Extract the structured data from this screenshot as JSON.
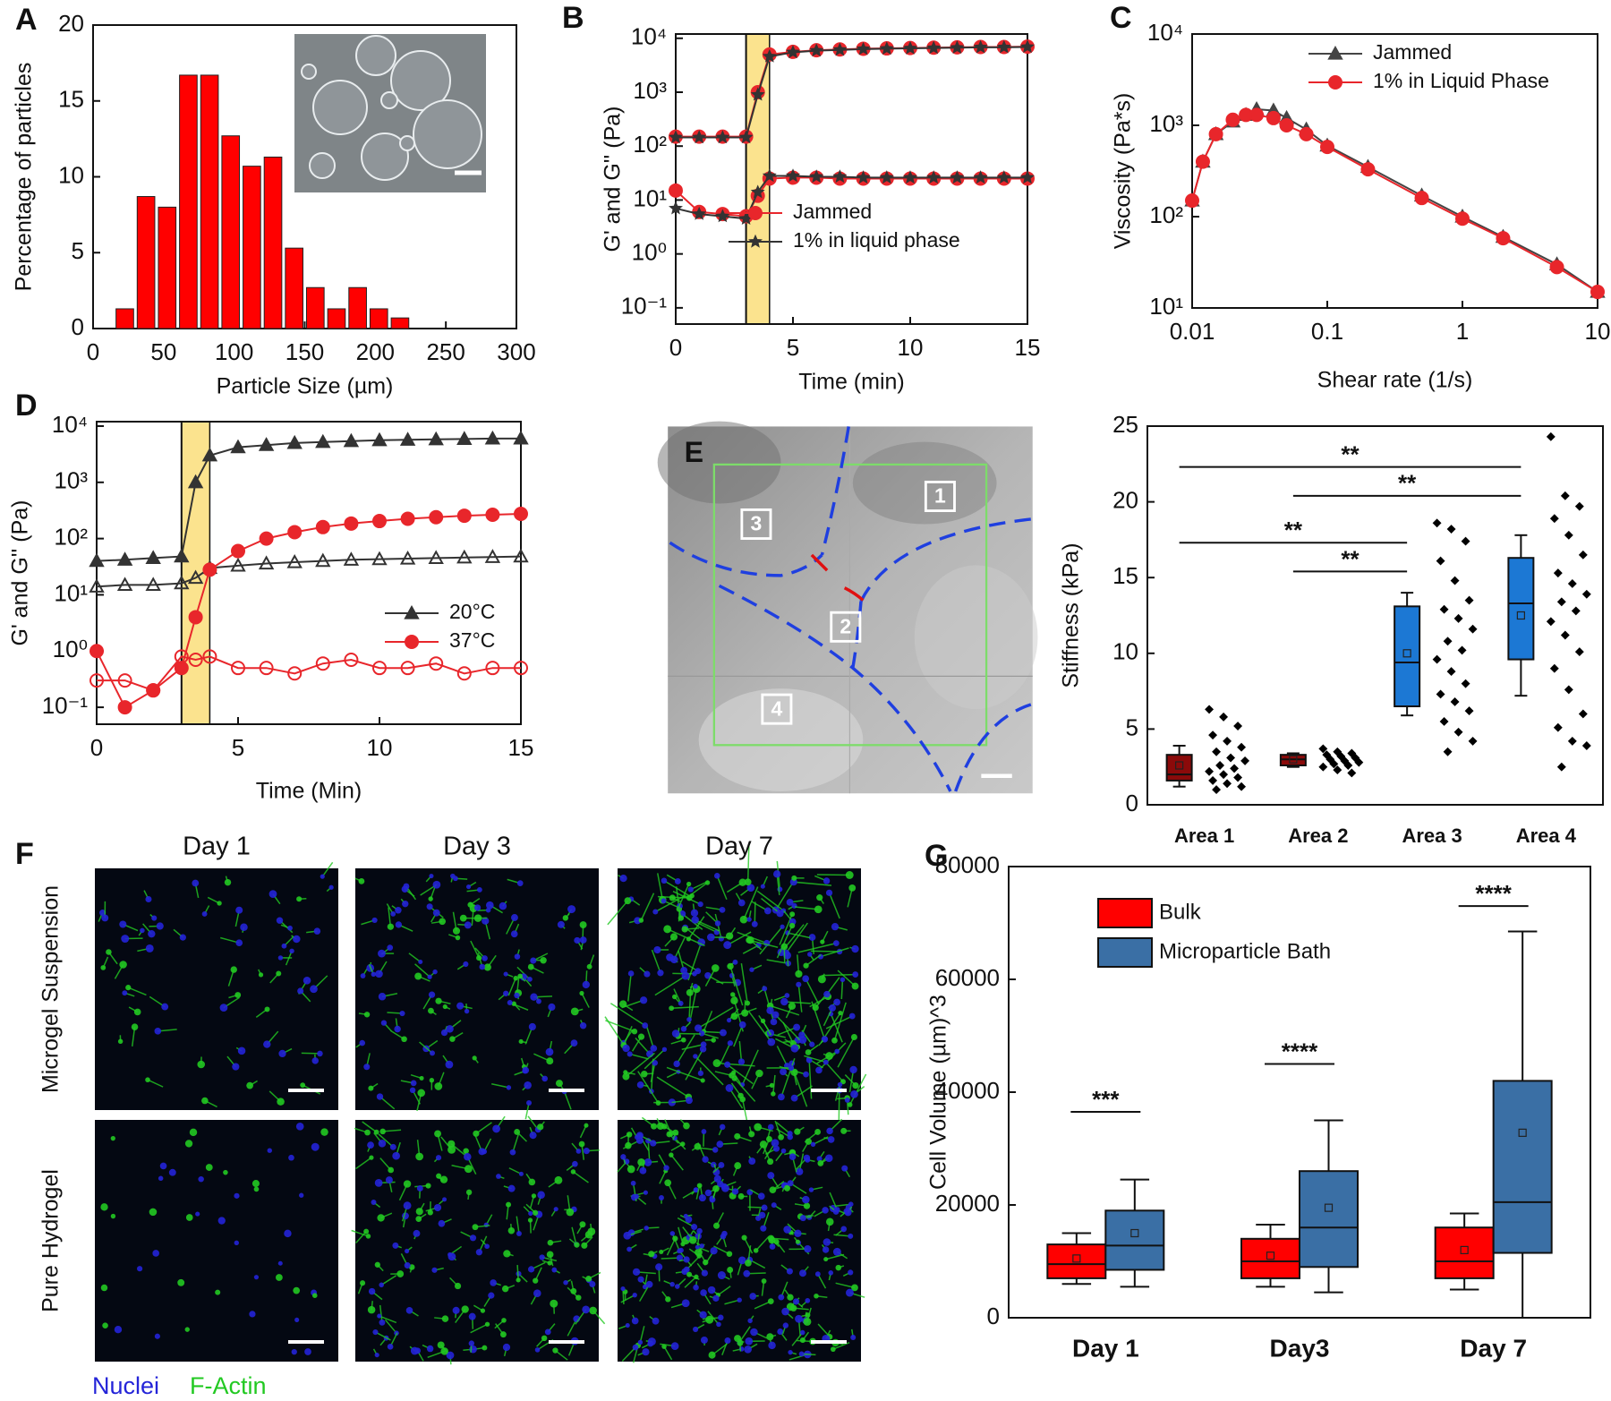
{
  "chart_data": [
    {
      "type": "histogram",
      "panel": "A",
      "xlabel": "Particle Size (µm)",
      "ylabel": "Percentage of particles",
      "bins": [
        15,
        30,
        45,
        60,
        75,
        90,
        105,
        120,
        135,
        150,
        165,
        180,
        195,
        210,
        225
      ],
      "values": [
        1.3,
        8.7,
        8.0,
        16.7,
        16.7,
        12.7,
        10.7,
        11.3,
        5.3,
        2.7,
        1.3,
        2.7,
        1.3,
        0.7
      ],
      "color": "#ff0000",
      "xlim": [
        0,
        300
      ],
      "xticks": [
        0,
        50,
        100,
        150,
        200,
        250,
        300
      ],
      "ylim": [
        0,
        20
      ],
      "yticks": [
        0,
        5,
        10,
        15,
        20
      ]
    },
    {
      "type": "line",
      "panel": "B",
      "xlabel": "Time (min)",
      "ylabel": "G' and G'' (Pa)",
      "yscale": "log",
      "x": [
        0,
        1,
        2,
        3,
        3.5,
        4,
        5,
        6,
        7,
        8,
        9,
        10,
        11,
        12,
        13,
        14,
        15
      ],
      "series": [
        {
          "name": "Jammed",
          "color": "#e8262b",
          "marker": "circle",
          "values": [
            150,
            150,
            150,
            150,
            1000,
            5000,
            5600,
            6000,
            6200,
            6400,
            6500,
            6600,
            6700,
            6800,
            6900,
            6900,
            7000
          ],
          "loss_values": [
            15,
            6,
            5.5,
            5,
            12,
            25,
            26,
            26,
            25,
            25,
            25,
            25,
            25,
            25,
            25,
            25,
            25
          ]
        },
        {
          "name": "1% in liquid phase",
          "color": "#333333",
          "marker": "star",
          "values": [
            145,
            145,
            145,
            145,
            900,
            4600,
            5500,
            5900,
            6100,
            6300,
            6400,
            6500,
            6600,
            6700,
            6800,
            6800,
            6900
          ],
          "loss_values": [
            7,
            5.5,
            5,
            4.5,
            14,
            28,
            28,
            27,
            27,
            26,
            26,
            26,
            26,
            26,
            26,
            26,
            26
          ]
        }
      ],
      "xlim": [
        0,
        15
      ],
      "xticks": [
        0,
        5,
        10,
        15
      ],
      "ylim": [
        0.05,
        12000
      ],
      "yticks": [
        {
          "value": 0.1,
          "label": "10⁻¹"
        },
        {
          "value": 1,
          "label": "10⁰"
        },
        {
          "value": 10,
          "label": "10¹"
        },
        {
          "value": 100,
          "label": "10²"
        },
        {
          "value": 1000,
          "label": "10³"
        },
        {
          "value": 10000,
          "label": "10⁴"
        }
      ],
      "shaded_x": [
        3,
        4
      ],
      "shade_color": "#fbe38e",
      "legend": "lower right"
    },
    {
      "type": "line",
      "panel": "C",
      "xlabel": "Shear rate (1/s)",
      "ylabel": "Viscosity (Pa*s)",
      "xscale": "log",
      "yscale": "log",
      "x": [
        0.01,
        0.012,
        0.015,
        0.02,
        0.025,
        0.03,
        0.04,
        0.05,
        0.07,
        0.1,
        0.2,
        0.5,
        1,
        2,
        5,
        10
      ],
      "series": [
        {
          "name": "Jammed",
          "color": "#444444",
          "marker": "triangle",
          "values": [
            150,
            400,
            800,
            1100,
            1300,
            1500,
            1450,
            1200,
            900,
            600,
            350,
            170,
            100,
            60,
            30,
            15
          ]
        },
        {
          "name": "1% in Liquid Phase",
          "color": "#e8262b",
          "marker": "circle",
          "values": [
            150,
            400,
            800,
            1150,
            1300,
            1300,
            1200,
            1000,
            800,
            580,
            330,
            160,
            95,
            58,
            28,
            15
          ]
        }
      ],
      "xlim": [
        0.01,
        10
      ],
      "xticks": [
        0.01,
        0.1,
        1,
        10
      ],
      "ylim": [
        10,
        10000
      ],
      "yticks": [
        {
          "value": 10,
          "label": "10¹"
        },
        {
          "value": 100,
          "label": "10²"
        },
        {
          "value": 1000,
          "label": "10³"
        },
        {
          "value": 10000,
          "label": "10⁴"
        }
      ],
      "legend": "upper left"
    },
    {
      "type": "line",
      "panel": "D",
      "xlabel": "Time (Min)",
      "ylabel": "G' and G'' (Pa)",
      "yscale": "log",
      "x": [
        0,
        1,
        2,
        3,
        3.5,
        4,
        5,
        6,
        7,
        8,
        9,
        10,
        11,
        12,
        13,
        14,
        15
      ],
      "series": [
        {
          "name": "20°C",
          "color": "#333333",
          "marker": "triangle",
          "values": [
            40,
            42,
            45,
            48,
            1000,
            3000,
            4200,
            4600,
            5000,
            5200,
            5400,
            5600,
            5700,
            5800,
            5900,
            6000,
            6000
          ],
          "loss_values": [
            14,
            15,
            15,
            16,
            20,
            30,
            33,
            36,
            38,
            40,
            42,
            43,
            44,
            45,
            46,
            47,
            48
          ]
        },
        {
          "name": "37°C",
          "color": "#e8262b",
          "marker": "circle",
          "values": [
            1,
            0.1,
            0.2,
            0.5,
            4,
            28,
            60,
            100,
            130,
            160,
            185,
            205,
            225,
            240,
            255,
            265,
            275
          ],
          "loss_values": [
            0.3,
            0.3,
            0.2,
            0.8,
            0.7,
            0.8,
            0.5,
            0.5,
            0.4,
            0.6,
            0.7,
            0.5,
            0.5,
            0.6,
            0.4,
            0.5,
            0.5
          ]
        }
      ],
      "open_loss_markers": true,
      "xlim": [
        0,
        15
      ],
      "xticks": [
        0,
        5,
        10,
        15
      ],
      "ylim": [
        0.05,
        12000
      ],
      "yticks": [
        {
          "value": 0.1,
          "label": "10⁻¹"
        },
        {
          "value": 1,
          "label": "10⁰"
        },
        {
          "value": 10,
          "label": "10¹"
        },
        {
          "value": 100,
          "label": "10²"
        },
        {
          "value": 1000,
          "label": "10³"
        },
        {
          "value": 10000,
          "label": "10⁴"
        }
      ],
      "shaded_x": [
        3,
        4
      ],
      "shade_color": "#fbe38e",
      "legend": "lower right"
    },
    {
      "type": "box",
      "ylabel": "Stiffness (kPa)",
      "categories": [
        "Area 1",
        "Area 2",
        "Area 3",
        "Area 4"
      ],
      "colors": [
        "#8b0a0a",
        "#8b0a0a",
        "#1c78d4",
        "#1c78d4"
      ],
      "boxes": [
        {
          "min": 1.2,
          "q1": 1.6,
          "median": 2.0,
          "q3": 3.3,
          "max": 3.9,
          "mean": 2.6
        },
        {
          "min": 2.5,
          "q1": 2.6,
          "median": 3.0,
          "q3": 3.3,
          "max": 3.4,
          "mean": 3.0
        },
        {
          "min": 5.9,
          "q1": 6.5,
          "median": 9.4,
          "q3": 13.1,
          "max": 14.0,
          "mean": 10.0
        },
        {
          "min": 7.2,
          "q1": 9.6,
          "median": 13.3,
          "q3": 16.3,
          "max": 17.8,
          "mean": 12.5
        }
      ],
      "points": [
        [
          6.3,
          5.8,
          5.2,
          4.6,
          4.2,
          3.8,
          3.5,
          3.1,
          2.9,
          2.6,
          2.4,
          2.2,
          2.0,
          1.8,
          1.6,
          1.4,
          1.2,
          1.0
        ],
        [
          3.7,
          3.5,
          3.4,
          3.3,
          3.2,
          3.1,
          3.0,
          2.9,
          2.8,
          2.7,
          2.6,
          2.5,
          2.3,
          2.1
        ],
        [
          18.6,
          18.2,
          17.4,
          16.1,
          14.8,
          13.5,
          12.9,
          12.3,
          11.6,
          10.8,
          10.2,
          9.6,
          8.8,
          8.0,
          7.3,
          6.8,
          6.2,
          5.5,
          4.8,
          4.2,
          3.5
        ],
        [
          24.3,
          20.4,
          19.7,
          18.9,
          17.8,
          16.5,
          15.3,
          14.6,
          13.9,
          13.4,
          12.8,
          12.1,
          11.2,
          10.1,
          9.0,
          7.6,
          6.0,
          5.1,
          4.2,
          3.9,
          2.5
        ]
      ],
      "ylim": [
        0,
        25
      ],
      "yticks": [
        0,
        5,
        10,
        15,
        20,
        25
      ],
      "significance": [
        {
          "label": "**",
          "from": 0,
          "to": 3,
          "y": 22.3
        },
        {
          "label": "**",
          "from": 1,
          "to": 3,
          "y": 20.4
        },
        {
          "label": "**",
          "from": 0,
          "to": 2,
          "y": 17.3
        },
        {
          "label": "**",
          "from": 1,
          "to": 2,
          "y": 15.4
        }
      ]
    },
    {
      "type": "box",
      "panel": "G",
      "ylabel": "Cell Volume (µm)^3",
      "categories": [
        "Day 1",
        "Day3",
        "Day 7"
      ],
      "series": [
        {
          "name": "Bulk",
          "color": "#ff0000",
          "boxes": [
            {
              "min": 6000,
              "q1": 7000,
              "median": 9500,
              "q3": 13000,
              "max": 15000,
              "mean": 10500
            },
            {
              "min": 5500,
              "q1": 7000,
              "median": 10000,
              "q3": 14000,
              "max": 16500,
              "mean": 11000
            },
            {
              "min": 5000,
              "q1": 7000,
              "median": 10000,
              "q3": 16000,
              "max": 18500,
              "mean": 12000
            }
          ]
        },
        {
          "name": "Microparticle Bath",
          "color": "#3a6fa5",
          "boxes": [
            {
              "min": 5500,
              "q1": 8500,
              "median": 12800,
              "q3": 19000,
              "max": 24500,
              "mean": 15000
            },
            {
              "min": 4500,
              "q1": 9000,
              "median": 16000,
              "q3": 26000,
              "max": 35000,
              "mean": 19500
            },
            {
              "min": 0,
              "q1": 11500,
              "median": 20500,
              "q3": 42000,
              "max": 68500,
              "mean": 32800
            }
          ]
        }
      ],
      "ylim": [
        0,
        80000
      ],
      "yticks": [
        0,
        20000,
        40000,
        60000,
        80000
      ],
      "legend": "upper left",
      "significance": [
        {
          "label": "***",
          "category": 0,
          "y": 36500
        },
        {
          "label": "****",
          "category": 1,
          "y": 45000
        },
        {
          "label": "****",
          "category": 2,
          "y": 73000
        }
      ]
    }
  ],
  "image_e": {
    "panel": "E",
    "region_labels": [
      "1",
      "2",
      "3",
      "4"
    ]
  },
  "micrographs": {
    "panel": "F",
    "columns": [
      "Day 1",
      "Day 3",
      "Day 7"
    ],
    "rows": [
      "Microgel Suspension",
      "Pure Hydrogel"
    ],
    "stains": [
      {
        "name": "Nuclei",
        "color": "#2424d8"
      },
      {
        "name": "F-Actin",
        "color": "#22c922"
      }
    ]
  }
}
